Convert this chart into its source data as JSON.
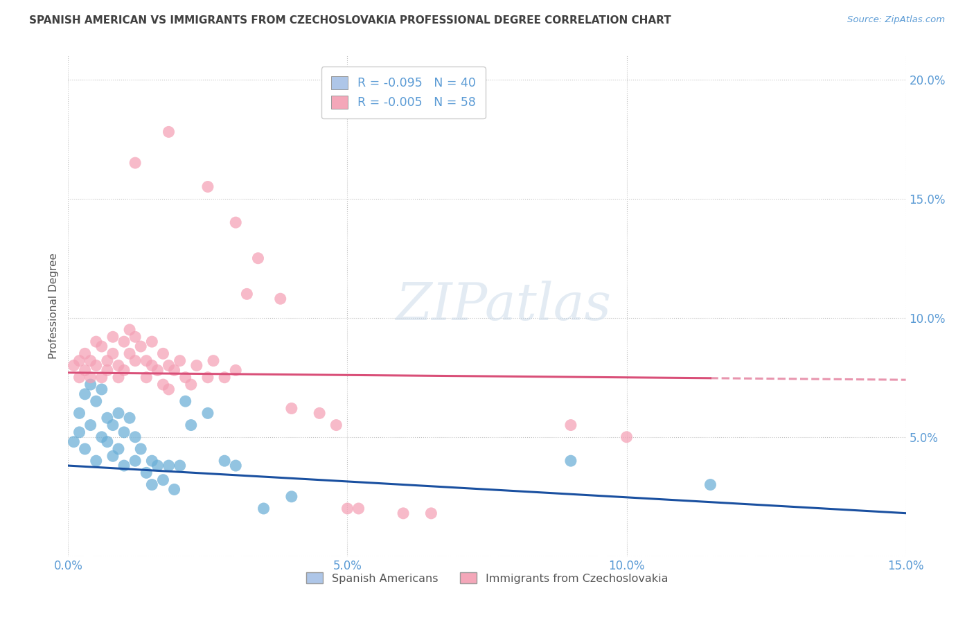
{
  "title": "SPANISH AMERICAN VS IMMIGRANTS FROM CZECHOSLOVAKIA PROFESSIONAL DEGREE CORRELATION CHART",
  "source": "Source: ZipAtlas.com",
  "xlabel": "",
  "ylabel": "Professional Degree",
  "watermark": "ZIPatlas",
  "xlim": [
    0.0,
    0.15
  ],
  "ylim": [
    0.0,
    0.21
  ],
  "xticks": [
    0.0,
    0.05,
    0.1,
    0.15
  ],
  "yticks": [
    0.0,
    0.05,
    0.1,
    0.15,
    0.2
  ],
  "xtick_labels": [
    "0.0%",
    "5.0%",
    "10.0%",
    "15.0%"
  ],
  "ytick_labels": [
    "",
    "5.0%",
    "10.0%",
    "15.0%",
    "20.0%"
  ],
  "legend_items": [
    {
      "label": "R = -0.095   N = 40",
      "color": "#aec6e8"
    },
    {
      "label": "R = -0.005   N = 58",
      "color": "#f4a7b9"
    }
  ],
  "legend_bottom": [
    {
      "label": "Spanish Americans",
      "color": "#aec6e8"
    },
    {
      "label": "Immigrants from Czechoslovakia",
      "color": "#f4a7b9"
    }
  ],
  "blue_color": "#6aaed6",
  "pink_color": "#f4a0b5",
  "blue_line_color": "#1a50a0",
  "pink_line_color": "#d94f78",
  "background_color": "#ffffff",
  "grid_color": "#bbbbbb",
  "title_color": "#404040",
  "axis_color": "#5b9bd5",
  "blue_scatter": [
    [
      0.001,
      0.048
    ],
    [
      0.002,
      0.06
    ],
    [
      0.002,
      0.052
    ],
    [
      0.003,
      0.068
    ],
    [
      0.003,
      0.045
    ],
    [
      0.004,
      0.072
    ],
    [
      0.004,
      0.055
    ],
    [
      0.005,
      0.065
    ],
    [
      0.005,
      0.04
    ],
    [
      0.006,
      0.07
    ],
    [
      0.006,
      0.05
    ],
    [
      0.007,
      0.058
    ],
    [
      0.007,
      0.048
    ],
    [
      0.008,
      0.055
    ],
    [
      0.008,
      0.042
    ],
    [
      0.009,
      0.06
    ],
    [
      0.009,
      0.045
    ],
    [
      0.01,
      0.052
    ],
    [
      0.01,
      0.038
    ],
    [
      0.011,
      0.058
    ],
    [
      0.012,
      0.05
    ],
    [
      0.012,
      0.04
    ],
    [
      0.013,
      0.045
    ],
    [
      0.014,
      0.035
    ],
    [
      0.015,
      0.04
    ],
    [
      0.015,
      0.03
    ],
    [
      0.016,
      0.038
    ],
    [
      0.017,
      0.032
    ],
    [
      0.018,
      0.038
    ],
    [
      0.019,
      0.028
    ],
    [
      0.02,
      0.038
    ],
    [
      0.021,
      0.065
    ],
    [
      0.022,
      0.055
    ],
    [
      0.025,
      0.06
    ],
    [
      0.028,
      0.04
    ],
    [
      0.03,
      0.038
    ],
    [
      0.035,
      0.02
    ],
    [
      0.04,
      0.025
    ],
    [
      0.09,
      0.04
    ],
    [
      0.115,
      0.03
    ]
  ],
  "pink_scatter": [
    [
      0.001,
      0.08
    ],
    [
      0.002,
      0.075
    ],
    [
      0.002,
      0.082
    ],
    [
      0.003,
      0.078
    ],
    [
      0.003,
      0.085
    ],
    [
      0.004,
      0.075
    ],
    [
      0.004,
      0.082
    ],
    [
      0.005,
      0.09
    ],
    [
      0.005,
      0.08
    ],
    [
      0.006,
      0.088
    ],
    [
      0.006,
      0.075
    ],
    [
      0.007,
      0.082
    ],
    [
      0.007,
      0.078
    ],
    [
      0.008,
      0.085
    ],
    [
      0.008,
      0.092
    ],
    [
      0.009,
      0.08
    ],
    [
      0.009,
      0.075
    ],
    [
      0.01,
      0.09
    ],
    [
      0.01,
      0.078
    ],
    [
      0.011,
      0.095
    ],
    [
      0.011,
      0.085
    ],
    [
      0.012,
      0.092
    ],
    [
      0.012,
      0.082
    ],
    [
      0.013,
      0.088
    ],
    [
      0.014,
      0.075
    ],
    [
      0.014,
      0.082
    ],
    [
      0.015,
      0.09
    ],
    [
      0.015,
      0.08
    ],
    [
      0.016,
      0.078
    ],
    [
      0.017,
      0.085
    ],
    [
      0.017,
      0.072
    ],
    [
      0.018,
      0.08
    ],
    [
      0.018,
      0.07
    ],
    [
      0.019,
      0.078
    ],
    [
      0.02,
      0.082
    ],
    [
      0.021,
      0.075
    ],
    [
      0.022,
      0.072
    ],
    [
      0.023,
      0.08
    ],
    [
      0.025,
      0.075
    ],
    [
      0.026,
      0.082
    ],
    [
      0.028,
      0.075
    ],
    [
      0.03,
      0.078
    ],
    [
      0.032,
      0.11
    ],
    [
      0.034,
      0.125
    ],
    [
      0.038,
      0.108
    ],
    [
      0.04,
      0.062
    ],
    [
      0.045,
      0.06
    ],
    [
      0.048,
      0.055
    ],
    [
      0.05,
      0.02
    ],
    [
      0.052,
      0.02
    ],
    [
      0.06,
      0.018
    ],
    [
      0.065,
      0.018
    ],
    [
      0.018,
      0.178
    ],
    [
      0.025,
      0.155
    ],
    [
      0.03,
      0.14
    ],
    [
      0.012,
      0.165
    ],
    [
      0.09,
      0.055
    ],
    [
      0.1,
      0.05
    ]
  ]
}
